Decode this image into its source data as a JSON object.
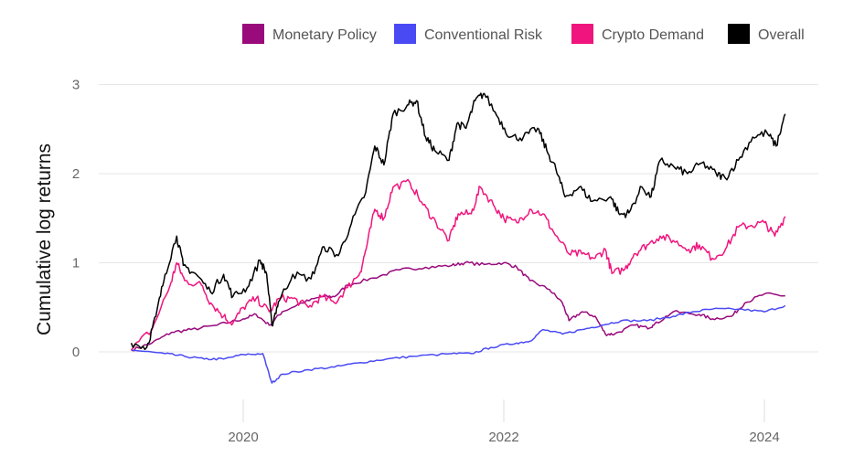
{
  "chart_data": {
    "type": "line",
    "title": "",
    "xlabel": "",
    "ylabel": "Cumulative log returns",
    "xlim": [
      2019.0,
      2024.4
    ],
    "ylim": [
      -0.5,
      3.0
    ],
    "yticks": [
      0,
      1,
      2,
      3
    ],
    "ytick_labels": [
      "0",
      "1",
      "2",
      "3"
    ],
    "xticks": [
      2020,
      2022,
      2024
    ],
    "xtick_labels": [
      "2020",
      "2022",
      "2024"
    ],
    "grid": true,
    "legend_position": "top-right",
    "series": [
      {
        "name": "Monetary Policy",
        "color": "#990a7c",
        "x": [
          2019.14,
          2019.3,
          2019.45,
          2019.6,
          2019.8,
          2020.0,
          2020.1,
          2020.2,
          2020.3,
          2020.45,
          2020.6,
          2020.7,
          2020.8,
          2021.0,
          2021.2,
          2021.4,
          2021.6,
          2021.7,
          2021.85,
          2022.0,
          2022.1,
          2022.2,
          2022.35,
          2022.45,
          2022.5,
          2022.6,
          2022.7,
          2022.78,
          2022.85,
          2023.0,
          2023.1,
          2023.15,
          2023.3,
          2023.5,
          2023.6,
          2023.75,
          2023.85,
          2024.0,
          2024.16
        ],
        "y": [
          0.02,
          0.1,
          0.22,
          0.25,
          0.3,
          0.37,
          0.42,
          0.3,
          0.45,
          0.55,
          0.62,
          0.62,
          0.75,
          0.83,
          0.92,
          0.95,
          0.97,
          1.0,
          0.98,
          1.0,
          0.95,
          0.8,
          0.7,
          0.55,
          0.35,
          0.45,
          0.4,
          0.2,
          0.2,
          0.3,
          0.27,
          0.3,
          0.45,
          0.42,
          0.37,
          0.4,
          0.55,
          0.65,
          0.63
        ]
      },
      {
        "name": "Conventional Risk",
        "color": "#4a4af4",
        "x": [
          2019.14,
          2019.4,
          2019.55,
          2019.7,
          2019.85,
          2020.0,
          2020.15,
          2020.22,
          2020.3,
          2020.5,
          2020.7,
          2020.9,
          2021.1,
          2021.3,
          2021.6,
          2021.75,
          2021.9,
          2022.1,
          2022.2,
          2022.3,
          2022.45,
          2022.6,
          2022.75,
          2022.9,
          2023.1,
          2023.3,
          2023.45,
          2023.6,
          2023.8,
          2024.0,
          2024.16
        ],
        "y": [
          0.02,
          -0.02,
          -0.05,
          -0.08,
          -0.08,
          -0.03,
          -0.02,
          -0.35,
          -0.25,
          -0.2,
          -0.17,
          -0.12,
          -0.08,
          -0.05,
          -0.02,
          -0.02,
          0.05,
          0.1,
          0.12,
          0.25,
          0.2,
          0.25,
          0.3,
          0.35,
          0.35,
          0.4,
          0.45,
          0.48,
          0.48,
          0.45,
          0.52
        ]
      },
      {
        "name": "Crypto Demand",
        "color": "#f0157e",
        "x": [
          2019.14,
          2019.3,
          2019.44,
          2019.49,
          2019.55,
          2019.68,
          2019.75,
          2019.85,
          2019.92,
          2020.0,
          2020.1,
          2020.2,
          2020.28,
          2020.38,
          2020.5,
          2020.6,
          2020.7,
          2020.8,
          2020.9,
          2020.95,
          2021.01,
          2021.08,
          2021.15,
          2021.28,
          2021.38,
          2021.48,
          2021.58,
          2021.65,
          2021.75,
          2021.82,
          2021.92,
          2022.0,
          2022.1,
          2022.2,
          2022.3,
          2022.38,
          2022.5,
          2022.6,
          2022.7,
          2022.78,
          2022.83,
          2022.93,
          2023.0,
          2023.1,
          2023.2,
          2023.3,
          2023.42,
          2023.5,
          2023.6,
          2023.7,
          2023.8,
          2023.9,
          2024.0,
          2024.08,
          2024.16
        ],
        "y": [
          0.02,
          0.25,
          0.75,
          1.0,
          0.8,
          0.75,
          0.55,
          0.4,
          0.32,
          0.5,
          0.6,
          0.45,
          0.6,
          0.6,
          0.5,
          0.62,
          0.55,
          0.72,
          0.9,
          1.2,
          1.6,
          1.5,
          1.85,
          1.9,
          1.65,
          1.45,
          1.25,
          1.55,
          1.55,
          1.85,
          1.65,
          1.5,
          1.45,
          1.6,
          1.55,
          1.35,
          1.1,
          1.1,
          1.05,
          1.15,
          0.88,
          0.93,
          1.1,
          1.2,
          1.3,
          1.25,
          1.15,
          1.2,
          1.05,
          1.15,
          1.4,
          1.42,
          1.45,
          1.3,
          1.52
        ]
      },
      {
        "name": "Overall",
        "color": "#000000",
        "x": [
          2019.14,
          2019.26,
          2019.33,
          2019.4,
          2019.49,
          2019.54,
          2019.64,
          2019.75,
          2019.85,
          2019.92,
          2020.03,
          2020.13,
          2020.18,
          2020.22,
          2020.27,
          2020.38,
          2020.52,
          2020.62,
          2020.73,
          2020.83,
          2020.94,
          2021.01,
          2021.08,
          2021.15,
          2021.26,
          2021.33,
          2021.4,
          2021.47,
          2021.58,
          2021.64,
          2021.71,
          2021.78,
          2021.85,
          2021.96,
          2022.05,
          2022.15,
          2022.26,
          2022.33,
          2022.4,
          2022.47,
          2022.58,
          2022.68,
          2022.82,
          2022.89,
          2022.96,
          2023.06,
          2023.13,
          2023.2,
          2023.31,
          2023.41,
          2023.52,
          2023.63,
          2023.7,
          2023.8,
          2023.91,
          2024.02,
          2024.09,
          2024.16
        ],
        "y": [
          0.1,
          0.05,
          0.4,
          0.87,
          1.3,
          0.97,
          0.87,
          0.67,
          0.87,
          0.62,
          0.72,
          1.03,
          0.87,
          0.3,
          0.56,
          0.87,
          0.82,
          1.18,
          1.08,
          1.44,
          1.79,
          2.31,
          2.1,
          2.67,
          2.77,
          2.82,
          2.41,
          2.26,
          2.15,
          2.56,
          2.51,
          2.82,
          2.9,
          2.62,
          2.41,
          2.41,
          2.51,
          2.26,
          2.05,
          1.74,
          1.85,
          1.69,
          1.74,
          1.54,
          1.56,
          1.85,
          1.74,
          2.15,
          2.07,
          2.0,
          2.12,
          2.0,
          1.95,
          2.15,
          2.41,
          2.46,
          2.31,
          2.67
        ]
      }
    ]
  }
}
